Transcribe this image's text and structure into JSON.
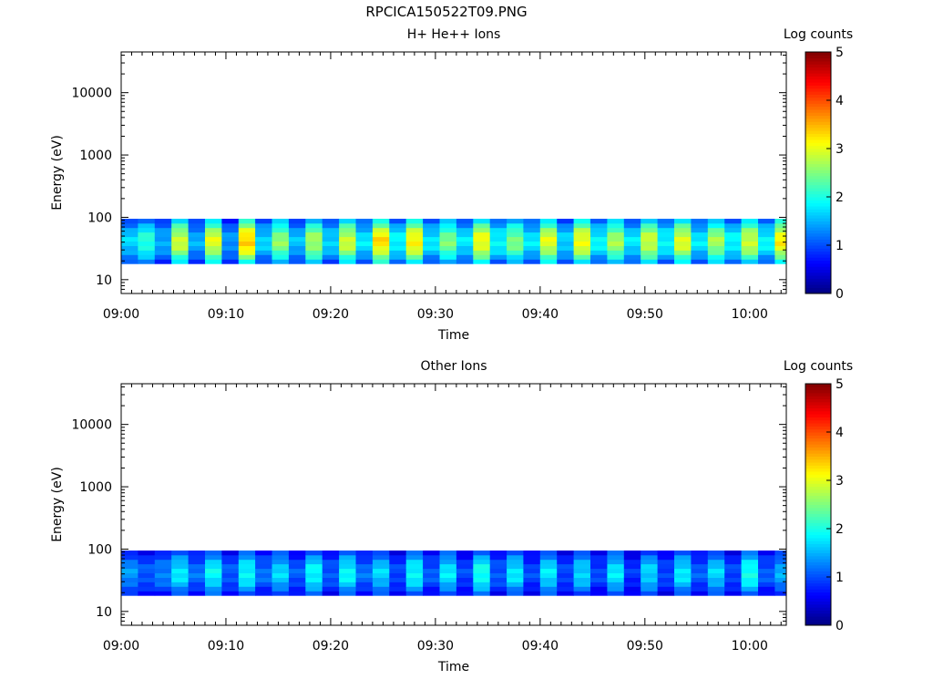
{
  "page": {
    "title": "RPCICA150522T09.PNG"
  },
  "colors": {
    "background": "#ffffff",
    "axis": "#000000",
    "colormap": [
      "#00007f",
      "#0000ff",
      "#007fff",
      "#00ffff",
      "#7fff7f",
      "#ffff00",
      "#ff7f00",
      "#ff0000",
      "#7f0000"
    ]
  },
  "chart_data": [
    {
      "type": "heatmap",
      "title": "H+ He++ Ions",
      "xlabel": "Time",
      "ylabel": "Energy (eV)",
      "yscale": "log",
      "ylim": [
        6,
        45000
      ],
      "xlim_minutes": [
        0,
        63.5
      ],
      "x_tick_labels": [
        "09:00",
        "09:10",
        "09:20",
        "09:30",
        "09:40",
        "09:50",
        "10:00"
      ],
      "y_tick_labels": [
        "10",
        "100",
        "1000",
        "10000"
      ],
      "colorbar": {
        "label": "Log counts",
        "range": [
          0,
          5
        ],
        "tick_labels": [
          "0",
          "1",
          "2",
          "3",
          "4",
          "5"
        ]
      },
      "energy_band_eV": [
        18,
        95
      ],
      "time_bins_minutes": [
        0,
        1.6,
        3.2,
        4.8,
        6.4,
        8.0,
        9.6,
        11.2,
        12.8,
        14.4,
        16.0,
        17.6,
        19.2,
        20.8,
        22.4,
        24.0,
        25.6,
        27.2,
        28.8,
        30.4,
        32.0,
        33.6,
        35.2,
        36.8,
        38.4,
        40.0,
        41.6,
        43.2,
        44.8,
        46.4,
        48.0,
        49.6,
        51.2,
        52.8,
        54.4,
        56.0,
        57.6,
        59.2,
        60.8,
        62.4
      ],
      "log_counts_peak": [
        1.8,
        2.2,
        1.6,
        3.0,
        1.6,
        3.1,
        1.5,
        3.5,
        1.8,
        2.7,
        1.7,
        2.8,
        1.8,
        3.0,
        1.9,
        3.4,
        2.0,
        3.3,
        1.9,
        2.6,
        1.9,
        3.2,
        2.0,
        2.6,
        1.9,
        3.1,
        1.8,
        3.2,
        2.0,
        2.8,
        1.9,
        3.0,
        2.0,
        3.1,
        1.9,
        2.8,
        2.0,
        3.0,
        2.0,
        3.3
      ]
    },
    {
      "type": "heatmap",
      "title": "Other Ions",
      "xlabel": "Time",
      "ylabel": "Energy (eV)",
      "yscale": "log",
      "ylim": [
        6,
        45000
      ],
      "xlim_minutes": [
        0,
        63.5
      ],
      "x_tick_labels": [
        "09:00",
        "09:10",
        "09:20",
        "09:30",
        "09:40",
        "09:50",
        "10:00"
      ],
      "y_tick_labels": [
        "10",
        "100",
        "1000",
        "10000"
      ],
      "colorbar": {
        "label": "Log counts",
        "range": [
          0,
          5
        ],
        "tick_labels": [
          "0",
          "1",
          "2",
          "3",
          "4",
          "5"
        ]
      },
      "energy_band_eV": [
        18,
        95
      ],
      "time_bins_minutes": [
        0,
        1.6,
        3.2,
        4.8,
        6.4,
        8.0,
        9.6,
        11.2,
        12.8,
        14.4,
        16.0,
        17.6,
        19.2,
        20.8,
        22.4,
        24.0,
        25.6,
        27.2,
        28.8,
        30.4,
        32.0,
        33.6,
        35.2,
        36.8,
        38.4,
        40.0,
        41.6,
        43.2,
        44.8,
        46.4,
        48.0,
        49.6,
        51.2,
        52.8,
        54.4,
        56.0,
        57.6,
        59.2,
        60.8,
        62.4
      ],
      "log_counts_peak": [
        1.5,
        1.2,
        1.4,
        1.9,
        1.3,
        2.0,
        1.2,
        2.0,
        1.3,
        1.8,
        1.2,
        2.0,
        1.2,
        2.0,
        1.3,
        1.8,
        1.1,
        2.0,
        1.2,
        1.9,
        1.1,
        2.1,
        1.2,
        1.9,
        1.1,
        1.9,
        1.1,
        1.8,
        1.1,
        1.9,
        1.0,
        1.8,
        1.1,
        1.9,
        1.2,
        1.8,
        1.1,
        2.1,
        1.2,
        1.6
      ]
    }
  ]
}
